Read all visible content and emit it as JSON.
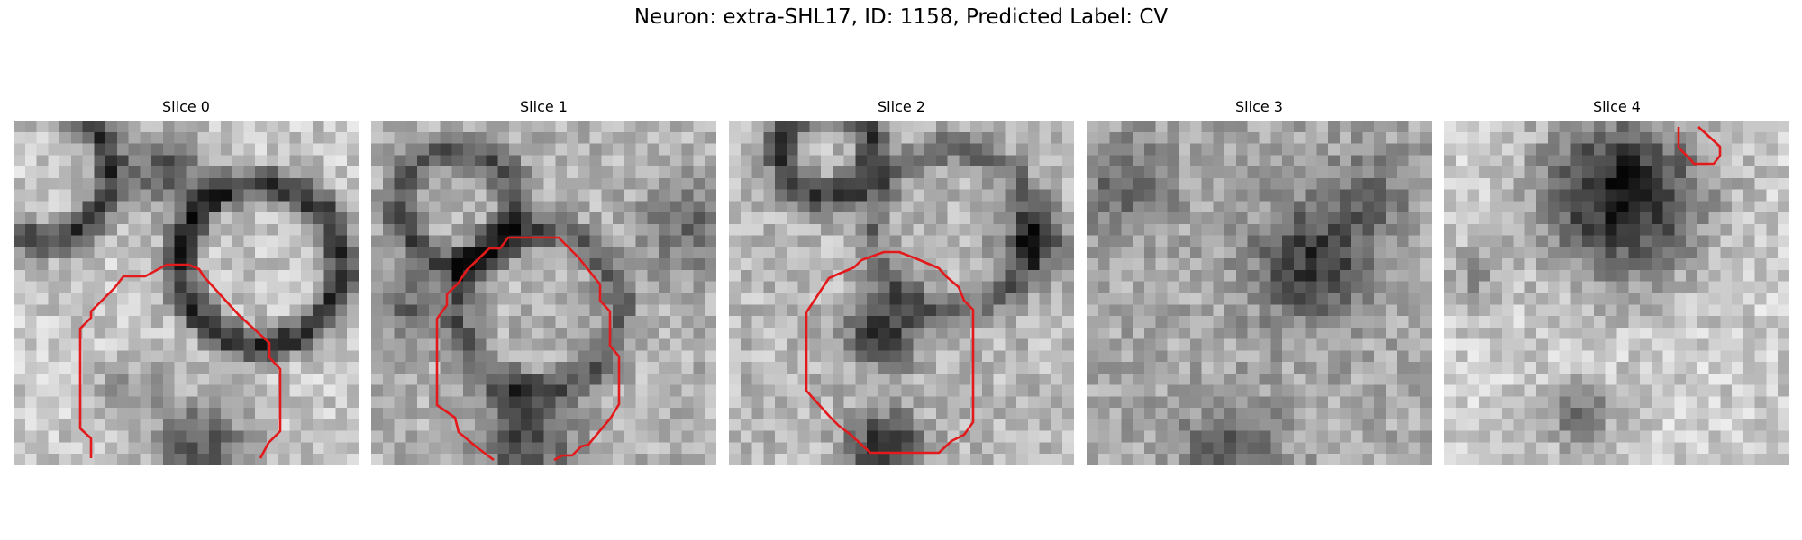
{
  "figure": {
    "title": "Neuron: extra-SHL17, ID: 1158, Predicted Label: CV"
  },
  "contour_color": "#e31a1c",
  "panels": [
    {
      "title": "Slice 0",
      "image": "grayscale-em-slice"
    },
    {
      "title": "Slice 1",
      "image": "grayscale-em-slice"
    },
    {
      "title": "Slice 2",
      "image": "grayscale-em-slice"
    },
    {
      "title": "Slice 3",
      "image": "grayscale-em-slice"
    },
    {
      "title": "Slice 4",
      "image": "grayscale-em-slice"
    }
  ]
}
